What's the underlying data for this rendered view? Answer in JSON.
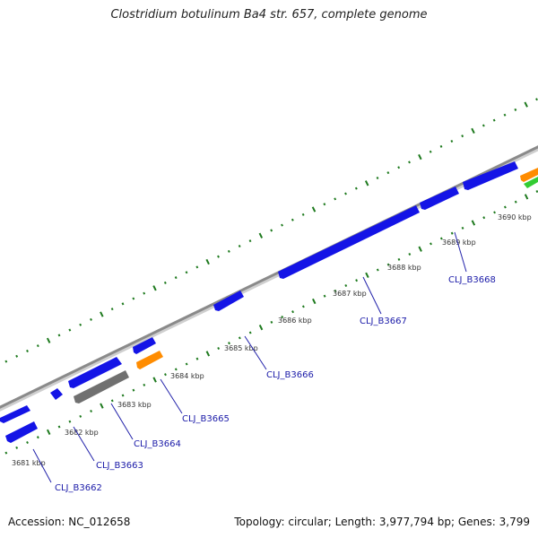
{
  "title": "Clostridium botulinum Ba4 str. 657, complete genome",
  "footer": {
    "accession": "Accession: NC_012658",
    "summary": "Topology: circular; Length: 3,977,794 bp; Genes: 3,799"
  },
  "colors": {
    "backbone": "#8a8a8a",
    "tick": "#1e7a1e",
    "cds": "#1414e6",
    "rna": "#ff8c00",
    "pseudo": "#707070",
    "other": "#33cc33",
    "leader": "#2222aa"
  },
  "ticks": [
    {
      "label": "3681 kbp"
    },
    {
      "label": "3682 kbp"
    },
    {
      "label": "3683 kbp"
    },
    {
      "label": "3684 kbp"
    },
    {
      "label": "3685 kbp"
    },
    {
      "label": "3686 kbp"
    },
    {
      "label": "3687 kbp"
    },
    {
      "label": "3688 kbp"
    },
    {
      "label": "3689 kbp"
    },
    {
      "label": "3690 kbp"
    }
  ],
  "gene_labels": [
    {
      "text": "CLJ_B3662"
    },
    {
      "text": "CLJ_B3663"
    },
    {
      "text": "CLJ_B3664"
    },
    {
      "text": "CLJ_B3665"
    },
    {
      "text": "CLJ_B3666"
    },
    {
      "text": "CLJ_B3667"
    },
    {
      "text": "CLJ_B3668"
    }
  ]
}
